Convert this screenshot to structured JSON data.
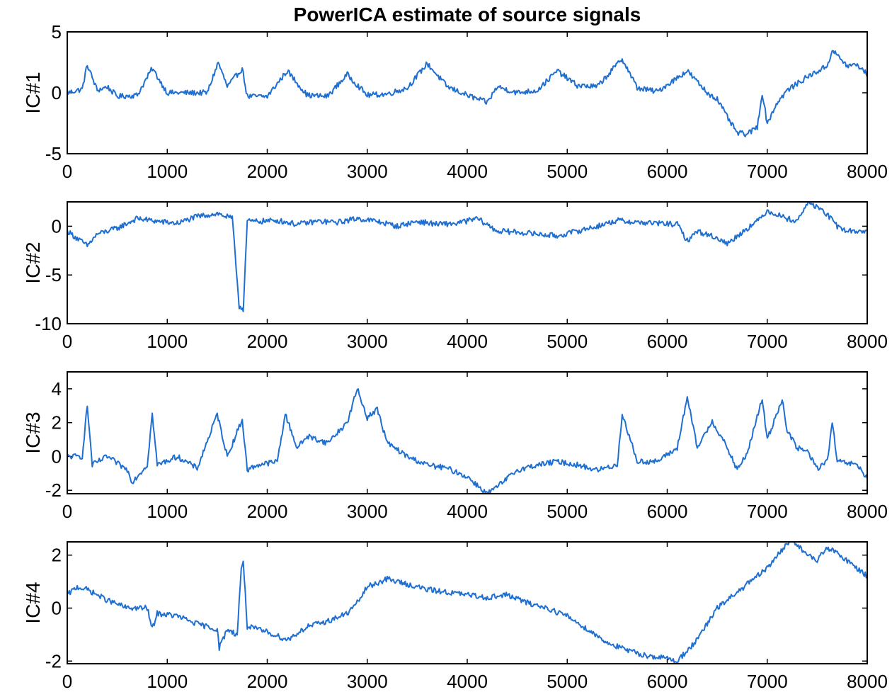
{
  "chart_data": {
    "type": "line",
    "title": "PowerICA estimate of source signals",
    "line_color": "#1f6fd1",
    "xlim": [
      0,
      8000
    ],
    "xticks": [
      "0",
      "1000",
      "2000",
      "3000",
      "4000",
      "5000",
      "6000",
      "7000",
      "8000"
    ],
    "grid": false,
    "panels": [
      {
        "ylabel": "IC#1",
        "ylim": [
          -5,
          5
        ],
        "yticks": [
          -5,
          0,
          5
        ],
        "ytick_labels": [
          "-5",
          "0",
          "5"
        ],
        "series": {
          "name": "IC#1",
          "x": [
            0,
            150,
            200,
            300,
            400,
            500,
            700,
            850,
            1000,
            1200,
            1400,
            1510,
            1600,
            1750,
            1800,
            2000,
            2200,
            2400,
            2600,
            2800,
            3000,
            3200,
            3400,
            3600,
            3800,
            4000,
            4200,
            4300,
            4500,
            4700,
            4900,
            5100,
            5300,
            5550,
            5700,
            5900,
            6200,
            6400,
            6500,
            6600,
            6700,
            6800,
            6900,
            6950,
            7000,
            7100,
            7200,
            7400,
            7600,
            7650,
            7800,
            7900,
            8000
          ],
          "y": [
            0,
            0.3,
            2.3,
            0.2,
            0.5,
            -0.3,
            -0.2,
            2,
            0,
            0,
            0,
            2.5,
            0.5,
            2,
            -0.3,
            -0.3,
            1.8,
            -0.2,
            -0.3,
            1.5,
            -0.2,
            -0.1,
            0.4,
            2.4,
            0.5,
            -0.2,
            -0.8,
            0.5,
            0,
            0.2,
            1.8,
            0.6,
            0.5,
            2.8,
            0.4,
            0.1,
            1.8,
            0,
            -0.5,
            -2,
            -3.3,
            -3.4,
            -2.8,
            0,
            -2.5,
            -0.8,
            0.2,
            1.3,
            2.2,
            3.5,
            2.2,
            2.3,
            1.5
          ]
        }
      },
      {
        "ylabel": "IC#2",
        "ylim": [
          -10,
          2.5
        ],
        "yticks": [
          -10,
          -5,
          0
        ],
        "ytick_labels": [
          "-10",
          "-5",
          "0"
        ],
        "series": {
          "name": "IC#2",
          "x": [
            0,
            200,
            300,
            500,
            700,
            900,
            1100,
            1300,
            1500,
            1650,
            1720,
            1760,
            1800,
            1900,
            2100,
            2300,
            2500,
            2700,
            2900,
            3100,
            3300,
            3500,
            3700,
            3900,
            4100,
            4300,
            4500,
            4700,
            4900,
            5100,
            5300,
            5500,
            5700,
            5900,
            6100,
            6200,
            6300,
            6500,
            6600,
            6700,
            6800,
            6900,
            7000,
            7200,
            7300,
            7400,
            7500,
            7600,
            7700,
            7800,
            8000
          ],
          "y": [
            -0.5,
            -2,
            -0.8,
            -0.2,
            0.8,
            0.5,
            0.3,
            1,
            1.3,
            0.8,
            -8.2,
            -8.5,
            0.5,
            0.5,
            0.6,
            0.2,
            0.5,
            0.4,
            0.8,
            0.5,
            0,
            0.5,
            0.2,
            0.3,
            0.8,
            -0.5,
            -0.6,
            -0.8,
            -1,
            -0.5,
            0,
            0.6,
            0.4,
            0.3,
            0.2,
            -1.5,
            -0.5,
            -1.2,
            -1.8,
            -1,
            -0.2,
            0.5,
            1.6,
            0.8,
            0.5,
            2.4,
            2,
            1.2,
            0,
            -0.5,
            -0.5
          ]
        }
      },
      {
        "ylabel": "IC#3",
        "ylim": [
          -2.2,
          5
        ],
        "yticks": [
          -2,
          0,
          2,
          4
        ],
        "ytick_labels": [
          "-2",
          "0",
          "2",
          "4"
        ],
        "series": {
          "name": "IC#3",
          "x": [
            0,
            150,
            200,
            250,
            400,
            600,
            650,
            800,
            850,
            900,
            1100,
            1300,
            1500,
            1600,
            1750,
            1800,
            1900,
            2100,
            2180,
            2300,
            2400,
            2600,
            2800,
            2900,
            3000,
            3100,
            3200,
            3400,
            3600,
            3800,
            4000,
            4200,
            4300,
            4500,
            4700,
            4900,
            5100,
            5300,
            5500,
            5550,
            5700,
            5900,
            6100,
            6200,
            6300,
            6450,
            6600,
            6700,
            6800,
            6950,
            7000,
            7150,
            7200,
            7300,
            7400,
            7500,
            7600,
            7650,
            7700,
            7900,
            8000
          ],
          "y": [
            0,
            0,
            3,
            -0.5,
            0,
            -0.8,
            -1.5,
            -0.5,
            2.5,
            -0.5,
            0,
            -0.7,
            2.5,
            0,
            2.2,
            -0.8,
            -0.5,
            -0.3,
            2.5,
            0.5,
            1.2,
            0.8,
            2,
            4,
            2.3,
            2.8,
            0.8,
            0,
            -0.5,
            -0.7,
            -1.2,
            -2.2,
            -1.8,
            -0.8,
            -0.5,
            -0.3,
            -0.5,
            -0.8,
            -0.5,
            2.5,
            -0.3,
            -0.3,
            0.5,
            3.5,
            0.5,
            2.1,
            0.5,
            -0.8,
            0.2,
            3.4,
            1,
            3.4,
            1.5,
            0.5,
            0.3,
            -0.7,
            -0.3,
            2,
            -0.3,
            -0.5,
            -1.3
          ]
        }
      },
      {
        "ylabel": "IC#4",
        "ylim": [
          -2.1,
          2.5
        ],
        "yticks": [
          -2,
          0,
          2
        ],
        "ytick_labels": [
          "-2",
          "0",
          "2"
        ],
        "series": {
          "name": "IC#4",
          "x": [
            0,
            100,
            200,
            400,
            600,
            800,
            850,
            900,
            1100,
            1300,
            1500,
            1520,
            1600,
            1700,
            1740,
            1760,
            1800,
            2000,
            2200,
            2400,
            2600,
            2800,
            2900,
            3000,
            3200,
            3400,
            3600,
            3800,
            4000,
            4200,
            4400,
            4600,
            4800,
            5000,
            5200,
            5400,
            5600,
            5800,
            6000,
            6100,
            6200,
            6300,
            6500,
            6700,
            6900,
            7000,
            7100,
            7250,
            7400,
            7500,
            7600,
            7800,
            8000
          ],
          "y": [
            0.5,
            0.8,
            0.7,
            0.3,
            0,
            0,
            -0.8,
            -0.2,
            -0.3,
            -0.6,
            -0.8,
            -1.5,
            -0.8,
            -1,
            1.5,
            1.8,
            -0.7,
            -0.9,
            -1.2,
            -0.7,
            -0.5,
            -0.2,
            0.2,
            0.8,
            1.1,
            0.9,
            0.7,
            0.6,
            0.5,
            0.4,
            0.5,
            0.2,
            0,
            -0.3,
            -0.8,
            -1.3,
            -1.6,
            -1.8,
            -1.9,
            -2,
            -1.6,
            -1.2,
            0,
            0.6,
            1.2,
            1.5,
            2,
            2.6,
            2,
            1.8,
            2.3,
            1.8,
            1.2
          ]
        }
      }
    ]
  }
}
